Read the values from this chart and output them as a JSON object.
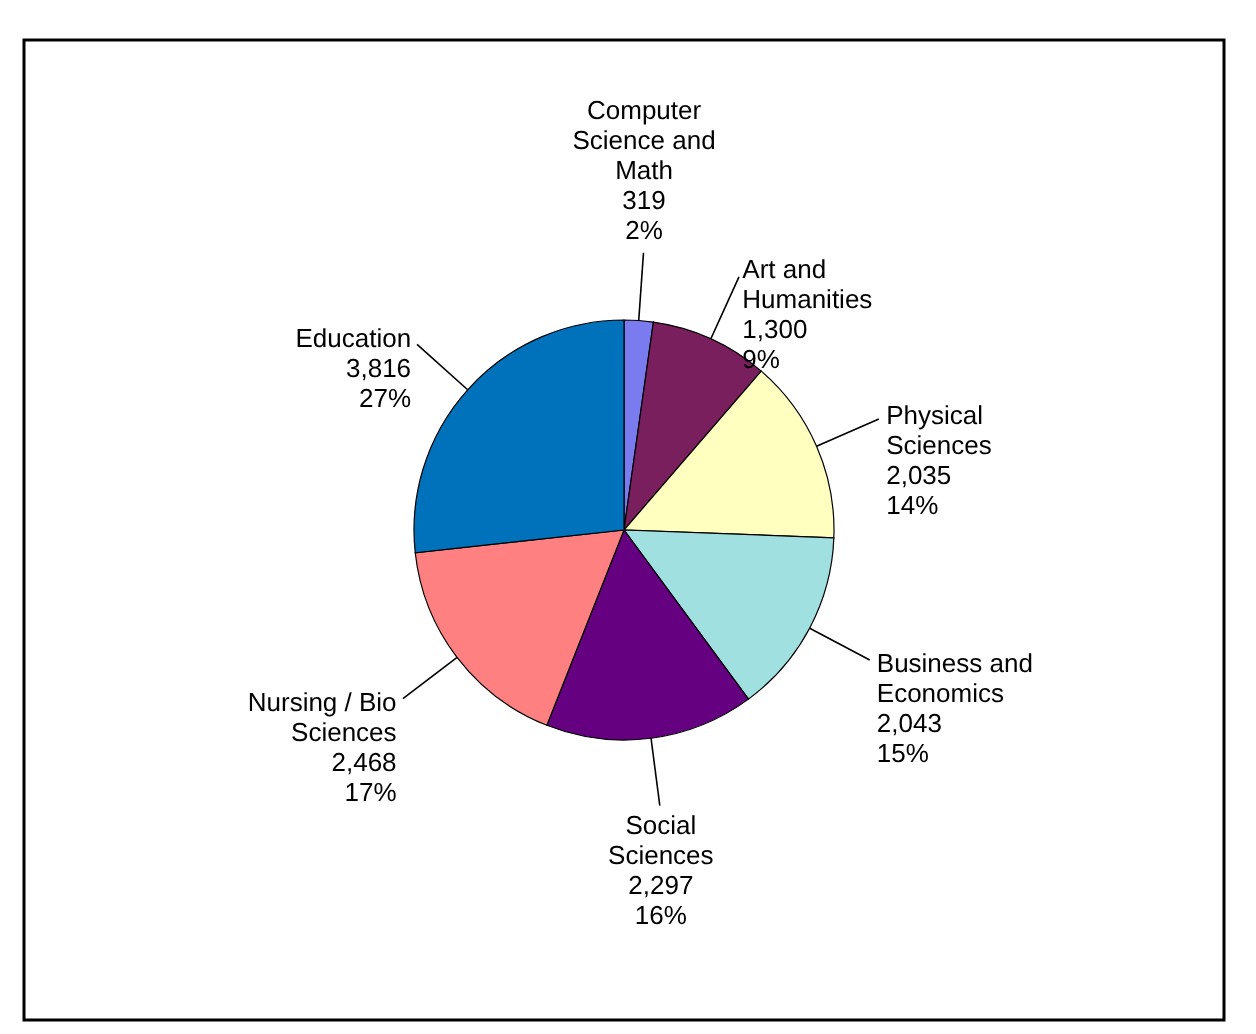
{
  "chart_data": {
    "type": "pie",
    "categories": [
      "Computer Science and Math",
      "Art and Humanities",
      "Physical Sciences",
      "Business and Economics",
      "Social Sciences",
      "Nursing / Bio Sciences",
      "Education"
    ],
    "values": [
      319,
      1300,
      2035,
      2043,
      2297,
      2468,
      3816
    ],
    "value_labels": [
      "319\n2%",
      "1,300\n9%",
      "2,035\n14%",
      "2,043\n15%",
      "2,297\n16%",
      "2,468\n17%",
      "3,816\n27%"
    ],
    "colors": [
      "#7b7bf0",
      "#7a1f5e",
      "#ffffc0",
      "#a0e0e0",
      "#650080",
      "#ff8080",
      "#0072bc"
    ],
    "legend": false
  }
}
